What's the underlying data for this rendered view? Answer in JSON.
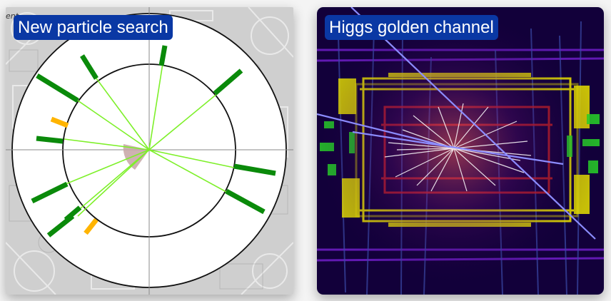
{
  "cards": [
    {
      "label": "New particle search",
      "corner_text": "ent",
      "colors": {
        "track": "#7ef02a",
        "hit_green": "#0a8a0a",
        "hit_orange": "#ffb400",
        "ring": "#111111",
        "axis": "#777777",
        "wedge": "#c9a9a9"
      }
    },
    {
      "label": "Higgs golden channel",
      "colors": {
        "background": "#12003a",
        "beam_line": "#8c8cff",
        "tracks": "#ffffff",
        "detector_yellow": "#e8e000",
        "detector_green": "#28d428",
        "detector_purple": "#7a20c8",
        "detector_red": "#c82020"
      }
    }
  ]
}
